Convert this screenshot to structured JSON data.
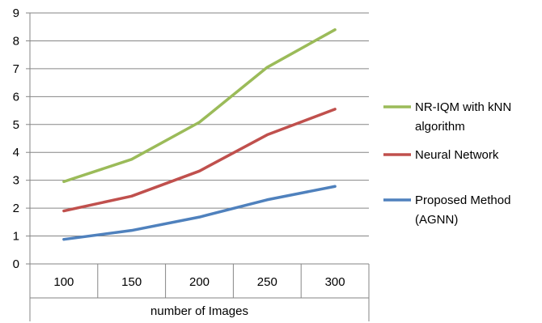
{
  "chart_data": {
    "type": "line",
    "xlabel": "number of Images",
    "ylabel": "",
    "categories": [
      "100",
      "150",
      "200",
      "250",
      "300"
    ],
    "ylim": [
      0,
      9
    ],
    "yticks": [
      "0",
      "1",
      "2",
      "3",
      "4",
      "5",
      "6",
      "7",
      "8",
      "9"
    ],
    "grid": true,
    "legend_position": "right",
    "series": [
      {
        "name": "NR-IQM with kNN algorithm",
        "color": "#9bbb59",
        "values": [
          2.95,
          3.75,
          5.08,
          7.05,
          8.4
        ]
      },
      {
        "name": "Neural Network",
        "color": "#c0504d",
        "values": [
          1.9,
          2.43,
          3.33,
          4.63,
          5.55
        ]
      },
      {
        "name": "Proposed Method (AGNN)",
        "color": "#4f81bd",
        "values": [
          0.88,
          1.2,
          1.68,
          2.3,
          2.78
        ]
      }
    ]
  }
}
